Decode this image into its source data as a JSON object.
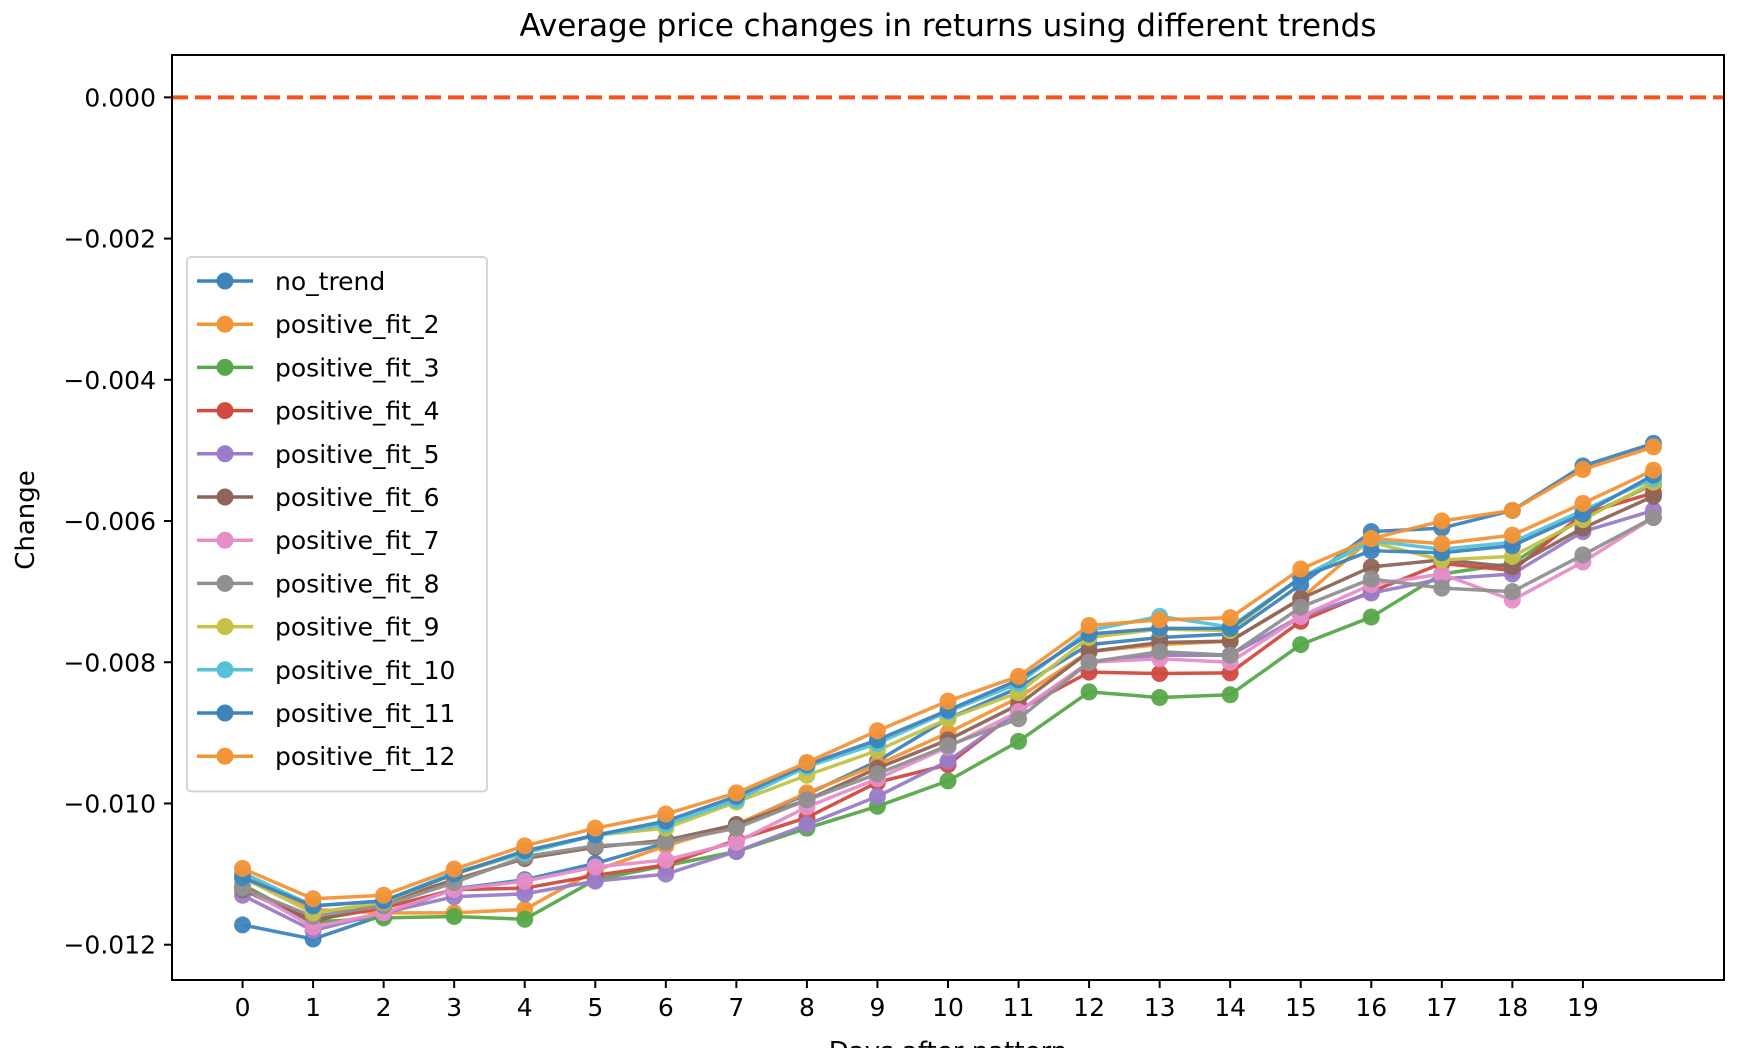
{
  "chart_data": {
    "type": "line",
    "title": "Average price changes in returns using different trends",
    "xlabel": "Days after pattern",
    "ylabel": "Change",
    "x": [
      0,
      1,
      2,
      3,
      4,
      5,
      6,
      7,
      8,
      9,
      10,
      11,
      12,
      13,
      14,
      15,
      16,
      17,
      18,
      19,
      20
    ],
    "x_ticks": [
      "0",
      "1",
      "2",
      "3",
      "4",
      "5",
      "6",
      "7",
      "8",
      "9",
      "10",
      "11",
      "12",
      "13",
      "14",
      "15",
      "16",
      "17",
      "18",
      "19"
    ],
    "xlim": [
      -1,
      21
    ],
    "y_ticks": [
      "0.000",
      "−0.002",
      "−0.004",
      "−0.006",
      "−0.008",
      "−0.010",
      "−0.012"
    ],
    "ylim": [
      -0.0125,
      0.0006
    ],
    "reference_line": {
      "y": 0.0,
      "color": "#f4511e",
      "style": "dashed"
    },
    "grid": false,
    "legend_position": "center-left",
    "series": [
      {
        "name": "no_trend",
        "color": "#3d84bd",
        "values": [
          -0.01172,
          -0.01192,
          -0.01158,
          -0.01121,
          -0.01108,
          -0.01085,
          -0.01056,
          -0.0103,
          -0.00987,
          -0.0094,
          -0.0088,
          -0.00836,
          -0.00775,
          -0.00765,
          -0.0076,
          -0.0069,
          -0.00615,
          -0.0061,
          -0.00585,
          -0.00522,
          -0.0049
        ]
      },
      {
        "name": "positive_fit_2",
        "color": "#f39436",
        "values": [
          -0.011,
          -0.0115,
          -0.01155,
          -0.01155,
          -0.0115,
          -0.01095,
          -0.0106,
          -0.0103,
          -0.00985,
          -0.00945,
          -0.009,
          -0.0085,
          -0.00785,
          -0.00775,
          -0.0077,
          -0.0071,
          -0.00625,
          -0.006,
          -0.00585,
          -0.00527,
          -0.00495
        ]
      },
      {
        "name": "positive_fit_3",
        "color": "#57a84a",
        "values": [
          -0.01115,
          -0.01168,
          -0.01162,
          -0.0116,
          -0.01164,
          -0.01108,
          -0.01088,
          -0.01068,
          -0.01035,
          -0.01004,
          -0.00968,
          -0.00912,
          -0.00842,
          -0.0085,
          -0.00846,
          -0.00775,
          -0.00736,
          -0.00675,
          -0.0066,
          -0.00595,
          -0.00548
        ]
      },
      {
        "name": "positive_fit_4",
        "color": "#d14a40",
        "values": [
          -0.01118,
          -0.01165,
          -0.01148,
          -0.01122,
          -0.0112,
          -0.01102,
          -0.01087,
          -0.01052,
          -0.0102,
          -0.0097,
          -0.00945,
          -0.00868,
          -0.00814,
          -0.00816,
          -0.00815,
          -0.00742,
          -0.007,
          -0.0066,
          -0.0067,
          -0.0059,
          -0.0056
        ]
      },
      {
        "name": "positive_fit_5",
        "color": "#9a7cc8",
        "values": [
          -0.0113,
          -0.0118,
          -0.01155,
          -0.01132,
          -0.01128,
          -0.0111,
          -0.011,
          -0.01068,
          -0.0103,
          -0.0099,
          -0.0094,
          -0.0087,
          -0.008,
          -0.0079,
          -0.0079,
          -0.00735,
          -0.00702,
          -0.00682,
          -0.00675,
          -0.00615,
          -0.00585
        ]
      },
      {
        "name": "positive_fit_6",
        "color": "#8e6558",
        "values": [
          -0.01122,
          -0.01168,
          -0.0114,
          -0.01108,
          -0.01078,
          -0.01062,
          -0.01052,
          -0.0103,
          -0.00995,
          -0.0095,
          -0.0091,
          -0.0086,
          -0.00785,
          -0.00772,
          -0.0077,
          -0.0071,
          -0.00665,
          -0.00655,
          -0.00665,
          -0.0061,
          -0.00565
        ]
      },
      {
        "name": "positive_fit_7",
        "color": "#e68ec8",
        "values": [
          -0.01118,
          -0.01175,
          -0.01155,
          -0.01122,
          -0.0111,
          -0.0109,
          -0.0108,
          -0.01055,
          -0.01005,
          -0.00965,
          -0.0092,
          -0.0087,
          -0.008,
          -0.00795,
          -0.008,
          -0.00735,
          -0.0069,
          -0.00675,
          -0.00712,
          -0.00658,
          -0.00595
        ]
      },
      {
        "name": "positive_fit_8",
        "color": "#909090",
        "values": [
          -0.0112,
          -0.0116,
          -0.01145,
          -0.01112,
          -0.01075,
          -0.0106,
          -0.01055,
          -0.01035,
          -0.00995,
          -0.00958,
          -0.00918,
          -0.0088,
          -0.008,
          -0.00785,
          -0.0079,
          -0.00722,
          -0.00682,
          -0.00695,
          -0.007,
          -0.00648,
          -0.00595
        ]
      },
      {
        "name": "positive_fit_9",
        "color": "#c4c247",
        "values": [
          -0.01105,
          -0.01155,
          -0.0114,
          -0.011,
          -0.0107,
          -0.01045,
          -0.01035,
          -0.00998,
          -0.0096,
          -0.00925,
          -0.0088,
          -0.00843,
          -0.00765,
          -0.00753,
          -0.00755,
          -0.0068,
          -0.0063,
          -0.00655,
          -0.0065,
          -0.00598,
          -0.00545
        ]
      },
      {
        "name": "positive_fit_10",
        "color": "#55c2d6",
        "values": [
          -0.01098,
          -0.01145,
          -0.01138,
          -0.01098,
          -0.0107,
          -0.01045,
          -0.0103,
          -0.00995,
          -0.00948,
          -0.00915,
          -0.0087,
          -0.0083,
          -0.00755,
          -0.00735,
          -0.0075,
          -0.0068,
          -0.00628,
          -0.0064,
          -0.0063,
          -0.00585,
          -0.0054
        ]
      },
      {
        "name": "positive_fit_11",
        "color": "#3d84bd",
        "values": [
          -0.01105,
          -0.01145,
          -0.01138,
          -0.011,
          -0.01067,
          -0.01045,
          -0.01025,
          -0.0099,
          -0.00945,
          -0.0091,
          -0.00868,
          -0.00825,
          -0.0076,
          -0.00752,
          -0.00752,
          -0.0068,
          -0.00642,
          -0.00645,
          -0.00635,
          -0.0059,
          -0.00535
        ]
      },
      {
        "name": "positive_fit_12",
        "color": "#f39436",
        "values": [
          -0.01092,
          -0.01135,
          -0.0113,
          -0.01093,
          -0.0106,
          -0.01035,
          -0.01015,
          -0.00985,
          -0.00942,
          -0.00897,
          -0.00855,
          -0.0082,
          -0.00748,
          -0.0074,
          -0.00737,
          -0.00668,
          -0.00625,
          -0.00632,
          -0.0062,
          -0.00575,
          -0.00528
        ]
      }
    ]
  }
}
